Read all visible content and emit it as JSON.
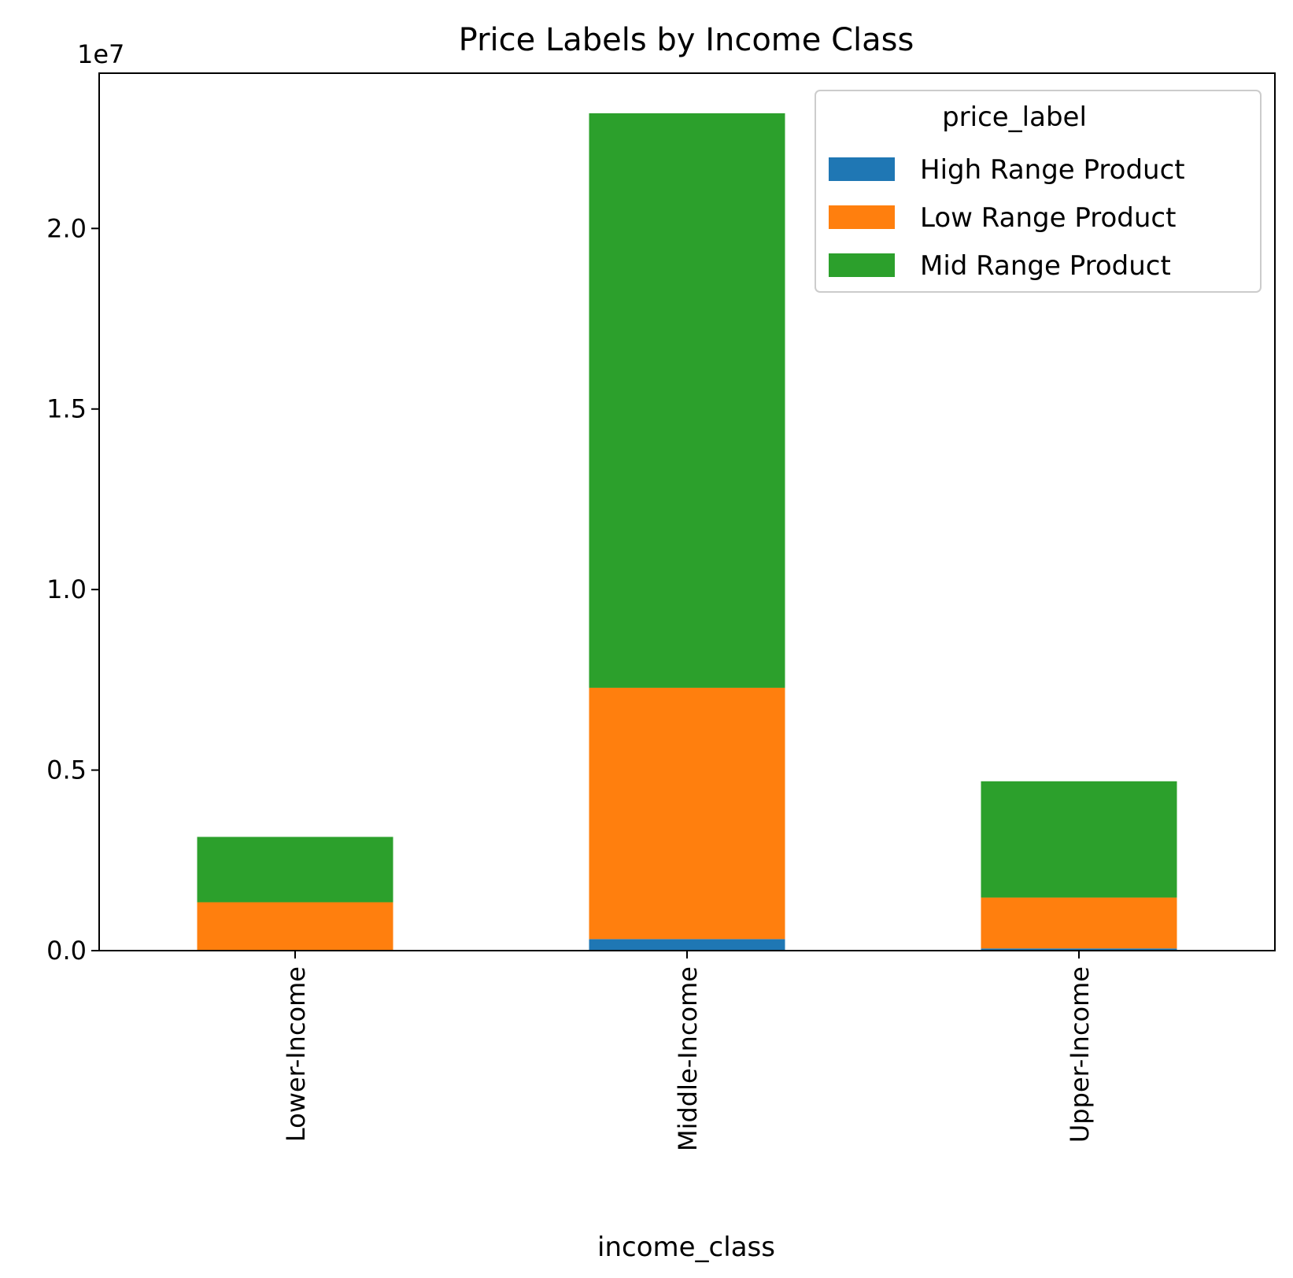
{
  "chart_data": {
    "type": "bar",
    "stacked": true,
    "title": "Price Labels by Income Class",
    "xlabel": "income_class",
    "ylabel": "",
    "y_offset_text": "1e7",
    "y_scale_factor": 10000000,
    "categories": [
      "Lower-Income",
      "Middle-Income",
      "Upper-Income"
    ],
    "series": [
      {
        "name": "High Range Product",
        "color": "#1f77b4",
        "values": [
          10000,
          320000,
          60000
        ]
      },
      {
        "name": "Low Range Product",
        "color": "#ff7f0e",
        "values": [
          1330000,
          6960000,
          1410000
        ]
      },
      {
        "name": "Mid Range Product",
        "color": "#2ca02c",
        "values": [
          1810000,
          15910000,
          3220000
        ]
      }
    ],
    "ylim": [
      0,
      24300000
    ],
    "y_ticks": [
      0,
      5000000,
      10000000,
      15000000,
      20000000
    ],
    "y_tick_labels": [
      "0.0",
      "0.5",
      "1.0",
      "1.5",
      "2.0"
    ],
    "legend": {
      "title": "price_label",
      "position": "top-right"
    },
    "grid": false
  }
}
